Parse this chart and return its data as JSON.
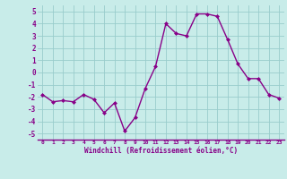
{
  "x": [
    0,
    1,
    2,
    3,
    4,
    5,
    6,
    7,
    8,
    9,
    10,
    11,
    12,
    13,
    14,
    15,
    16,
    17,
    18,
    19,
    20,
    21,
    22,
    23
  ],
  "y": [
    -1.8,
    -2.4,
    -2.3,
    -2.4,
    -1.8,
    -2.2,
    -3.3,
    -2.5,
    -4.8,
    -3.7,
    -1.3,
    0.5,
    4.0,
    3.2,
    3.0,
    4.8,
    4.8,
    4.6,
    2.7,
    0.7,
    -0.5,
    -0.5,
    -1.8,
    -2.1
  ],
  "line_color": "#880088",
  "marker": "D",
  "marker_size": 2.0,
  "bg_color": "#c8ece9",
  "grid_color": "#99cccc",
  "xlabel": "Windchill (Refroidissement éolien,°C)",
  "xlabel_color": "#880088",
  "tick_color": "#880088",
  "ylim": [
    -5.5,
    5.5
  ],
  "xlim": [
    -0.5,
    23.5
  ],
  "yticks": [
    -5,
    -4,
    -3,
    -2,
    -1,
    0,
    1,
    2,
    3,
    4,
    5
  ],
  "xticks": [
    0,
    1,
    2,
    3,
    4,
    5,
    6,
    7,
    8,
    9,
    10,
    11,
    12,
    13,
    14,
    15,
    16,
    17,
    18,
    19,
    20,
    21,
    22,
    23
  ],
  "spine_color": "#880088",
  "linewidth": 1.0
}
